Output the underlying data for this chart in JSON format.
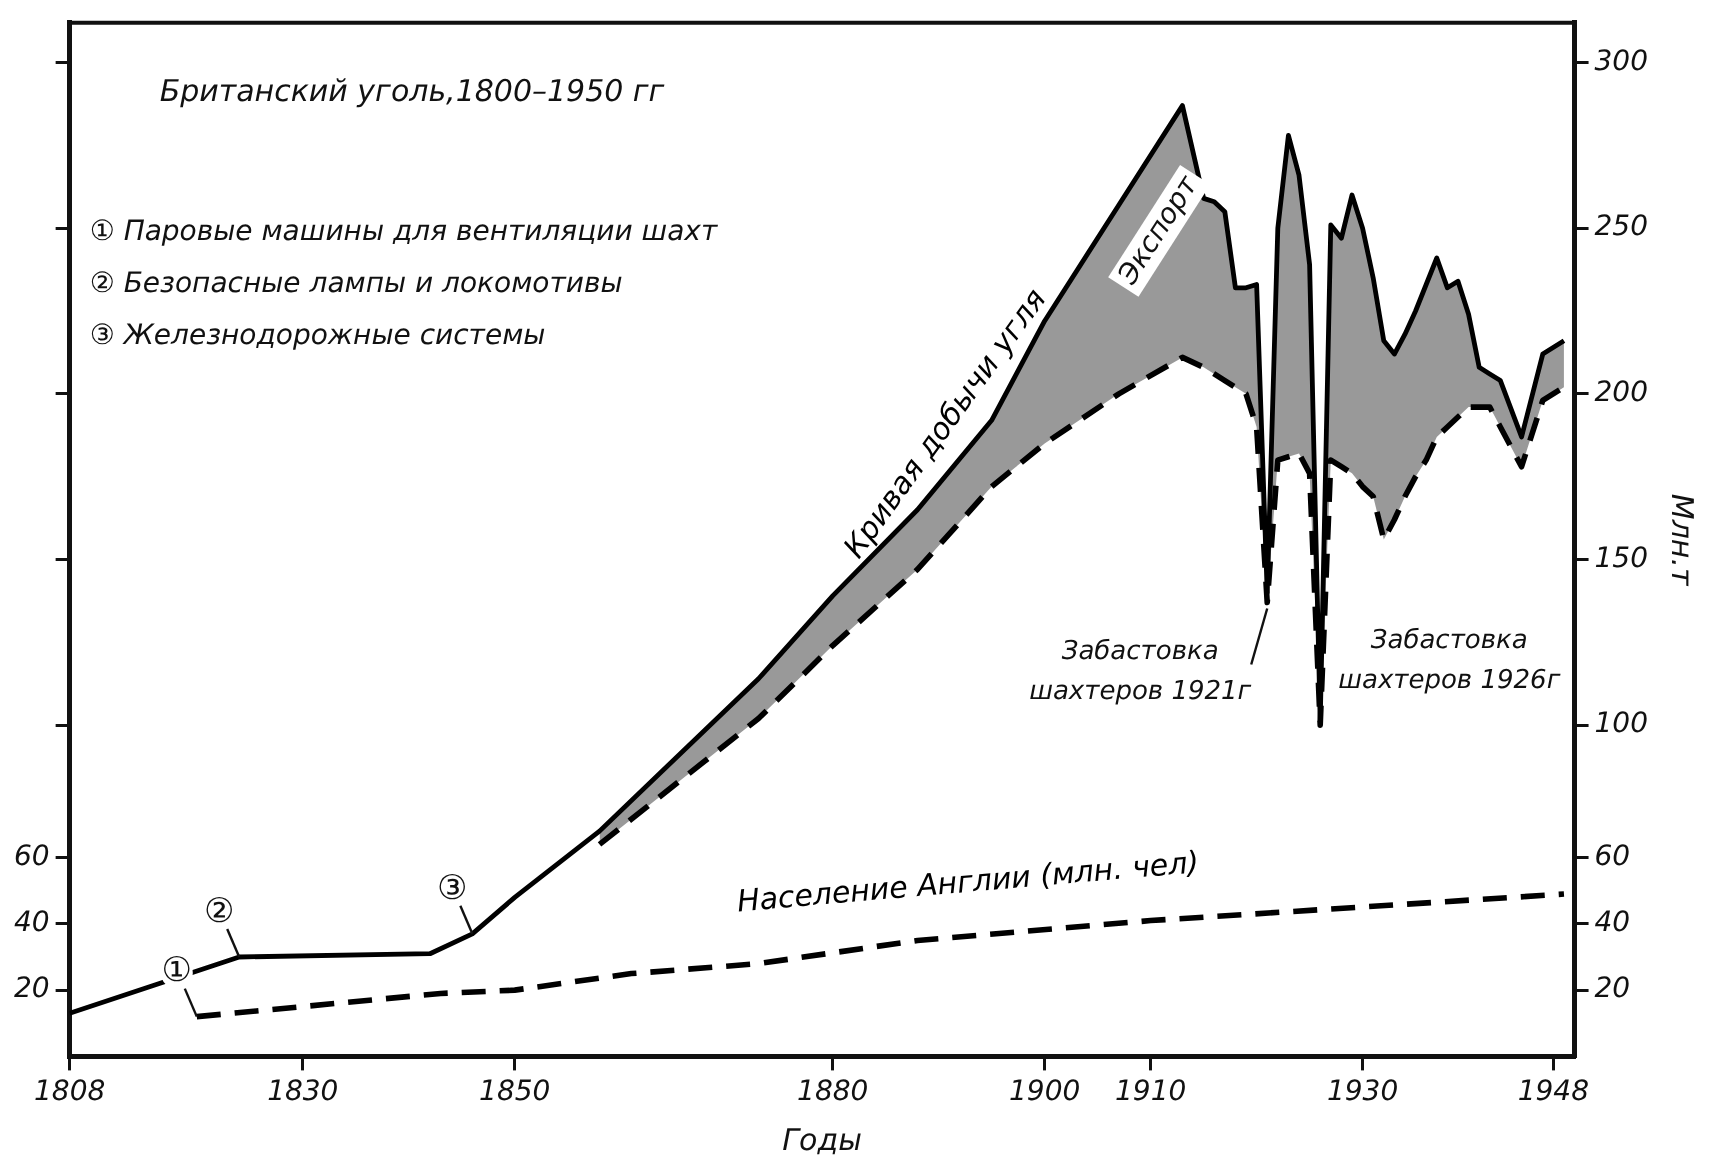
{
  "chart_data": {
    "type": "line",
    "title": "Британский уголь,1800–1950 гг",
    "xlabel": "Годы",
    "y2label": "Млн.т",
    "xlim": [
      1808,
      1950
    ],
    "xticks": [
      1808,
      1830,
      1850,
      1880,
      1900,
      1910,
      1930,
      1948
    ],
    "ylim": [
      0,
      312
    ],
    "yticks": [
      20,
      40,
      60,
      {
        "value": 100,
        "label": null
      },
      {
        "value": 150,
        "label": null
      },
      {
        "value": 200,
        "label": null
      },
      {
        "value": 250,
        "label": null
      },
      {
        "value": 300,
        "label": null
      }
    ],
    "y2lim": [
      0,
      312
    ],
    "y2ticks": [
      20,
      40,
      60,
      100,
      150,
      200,
      250,
      300
    ],
    "grid": false,
    "legend": false,
    "marker": "none",
    "series": [
      {
        "name": "Кривая добычи угля",
        "color": "#000000",
        "line_style": "solid",
        "x": [
          1808,
          1824,
          1842,
          1846,
          1850,
          1858,
          1873,
          1880,
          1888,
          1895,
          1900,
          1907,
          1913,
          1915,
          1916,
          1917,
          1918,
          1919,
          1920,
          1921,
          1922,
          1923,
          1924,
          1925,
          1926,
          1927,
          1928,
          1929,
          1930,
          1931,
          1932,
          1933,
          1934,
          1935,
          1936,
          1937,
          1938,
          1939,
          1940,
          1941,
          1942,
          1943,
          1945,
          1947,
          1949
        ],
        "values": [
          13,
          30,
          31,
          37,
          48,
          68,
          114,
          139,
          165,
          192,
          222,
          257,
          287,
          259,
          258,
          255,
          232,
          232,
          233,
          140,
          250,
          278,
          266,
          239,
          101,
          251,
          247,
          260,
          250,
          235,
          216,
          212,
          218,
          225,
          233,
          241,
          232,
          234,
          224,
          208,
          206,
          204,
          187,
          212,
          216
        ],
        "lower": [
          null,
          null,
          null,
          null,
          null,
          64,
          102,
          124,
          147,
          172,
          185,
          200,
          211,
          208,
          206,
          204,
          202,
          200,
          190,
          137,
          180,
          181,
          182,
          176,
          100,
          180,
          178,
          176,
          172,
          169,
          156,
          162,
          169,
          175,
          180,
          187,
          190,
          193,
          196,
          196,
          196,
          190,
          178,
          198,
          202
        ],
        "upper": [
          null,
          null,
          null,
          null,
          null,
          68,
          114,
          139,
          165,
          192,
          222,
          257,
          287,
          259,
          258,
          255,
          232,
          232,
          233,
          140,
          250,
          278,
          266,
          239,
          101,
          251,
          247,
          260,
          250,
          235,
          216,
          212,
          218,
          225,
          233,
          241,
          232,
          234,
          224,
          208,
          206,
          204,
          187,
          212,
          216
        ]
      },
      {
        "color": "#000000",
        "line_style": "dashed",
        "x": [
          1858,
          1873,
          1880,
          1888,
          1895,
          1900,
          1907,
          1913,
          1915,
          1916,
          1917,
          1918,
          1919,
          1920,
          1921,
          1922,
          1923,
          1924,
          1925,
          1926,
          1927,
          1928,
          1929,
          1930,
          1931,
          1932,
          1933,
          1934,
          1935,
          1936,
          1937,
          1938,
          1939,
          1940,
          1941,
          1942,
          1943,
          1945,
          1947,
          1949
        ],
        "values": [
          64,
          102,
          124,
          147,
          172,
          185,
          200,
          211,
          208,
          206,
          204,
          202,
          200,
          190,
          137,
          180,
          181,
          182,
          176,
          100,
          180,
          178,
          176,
          172,
          169,
          156,
          162,
          169,
          175,
          180,
          187,
          190,
          193,
          196,
          196,
          196,
          190,
          178,
          198,
          202
        ]
      },
      {
        "name": "Население Англии (млн. чел)",
        "color": "#000000",
        "line_style": "dashed",
        "x": [
          1820,
          1843,
          1850,
          1861,
          1873,
          1888,
          1910,
          1949
        ],
        "values": [
          12,
          19,
          20,
          25,
          28,
          35,
          41,
          49
        ]
      }
    ],
    "annotations": [
      "① Паровые машины для вентиляции шахт",
      "② Безопасные лампы и локомотивы",
      "③ Железнодорожные системы",
      {
        "text": "①",
        "x": 1820,
        "y": 12
      },
      {
        "text": "②",
        "x": 1824,
        "y": 30
      },
      {
        "text": "③",
        "x": 1846,
        "y": 37
      },
      {
        "text": "Экспорт",
        "x": 1907,
        "y": 257
      },
      {
        "text": "Забастовка шахтеров 1921г",
        "x": 1921,
        "y": 137
      },
      {
        "text": "Забастовка шахтеров 1926г",
        "x": 1926,
        "y": 100
      }
    ]
  }
}
